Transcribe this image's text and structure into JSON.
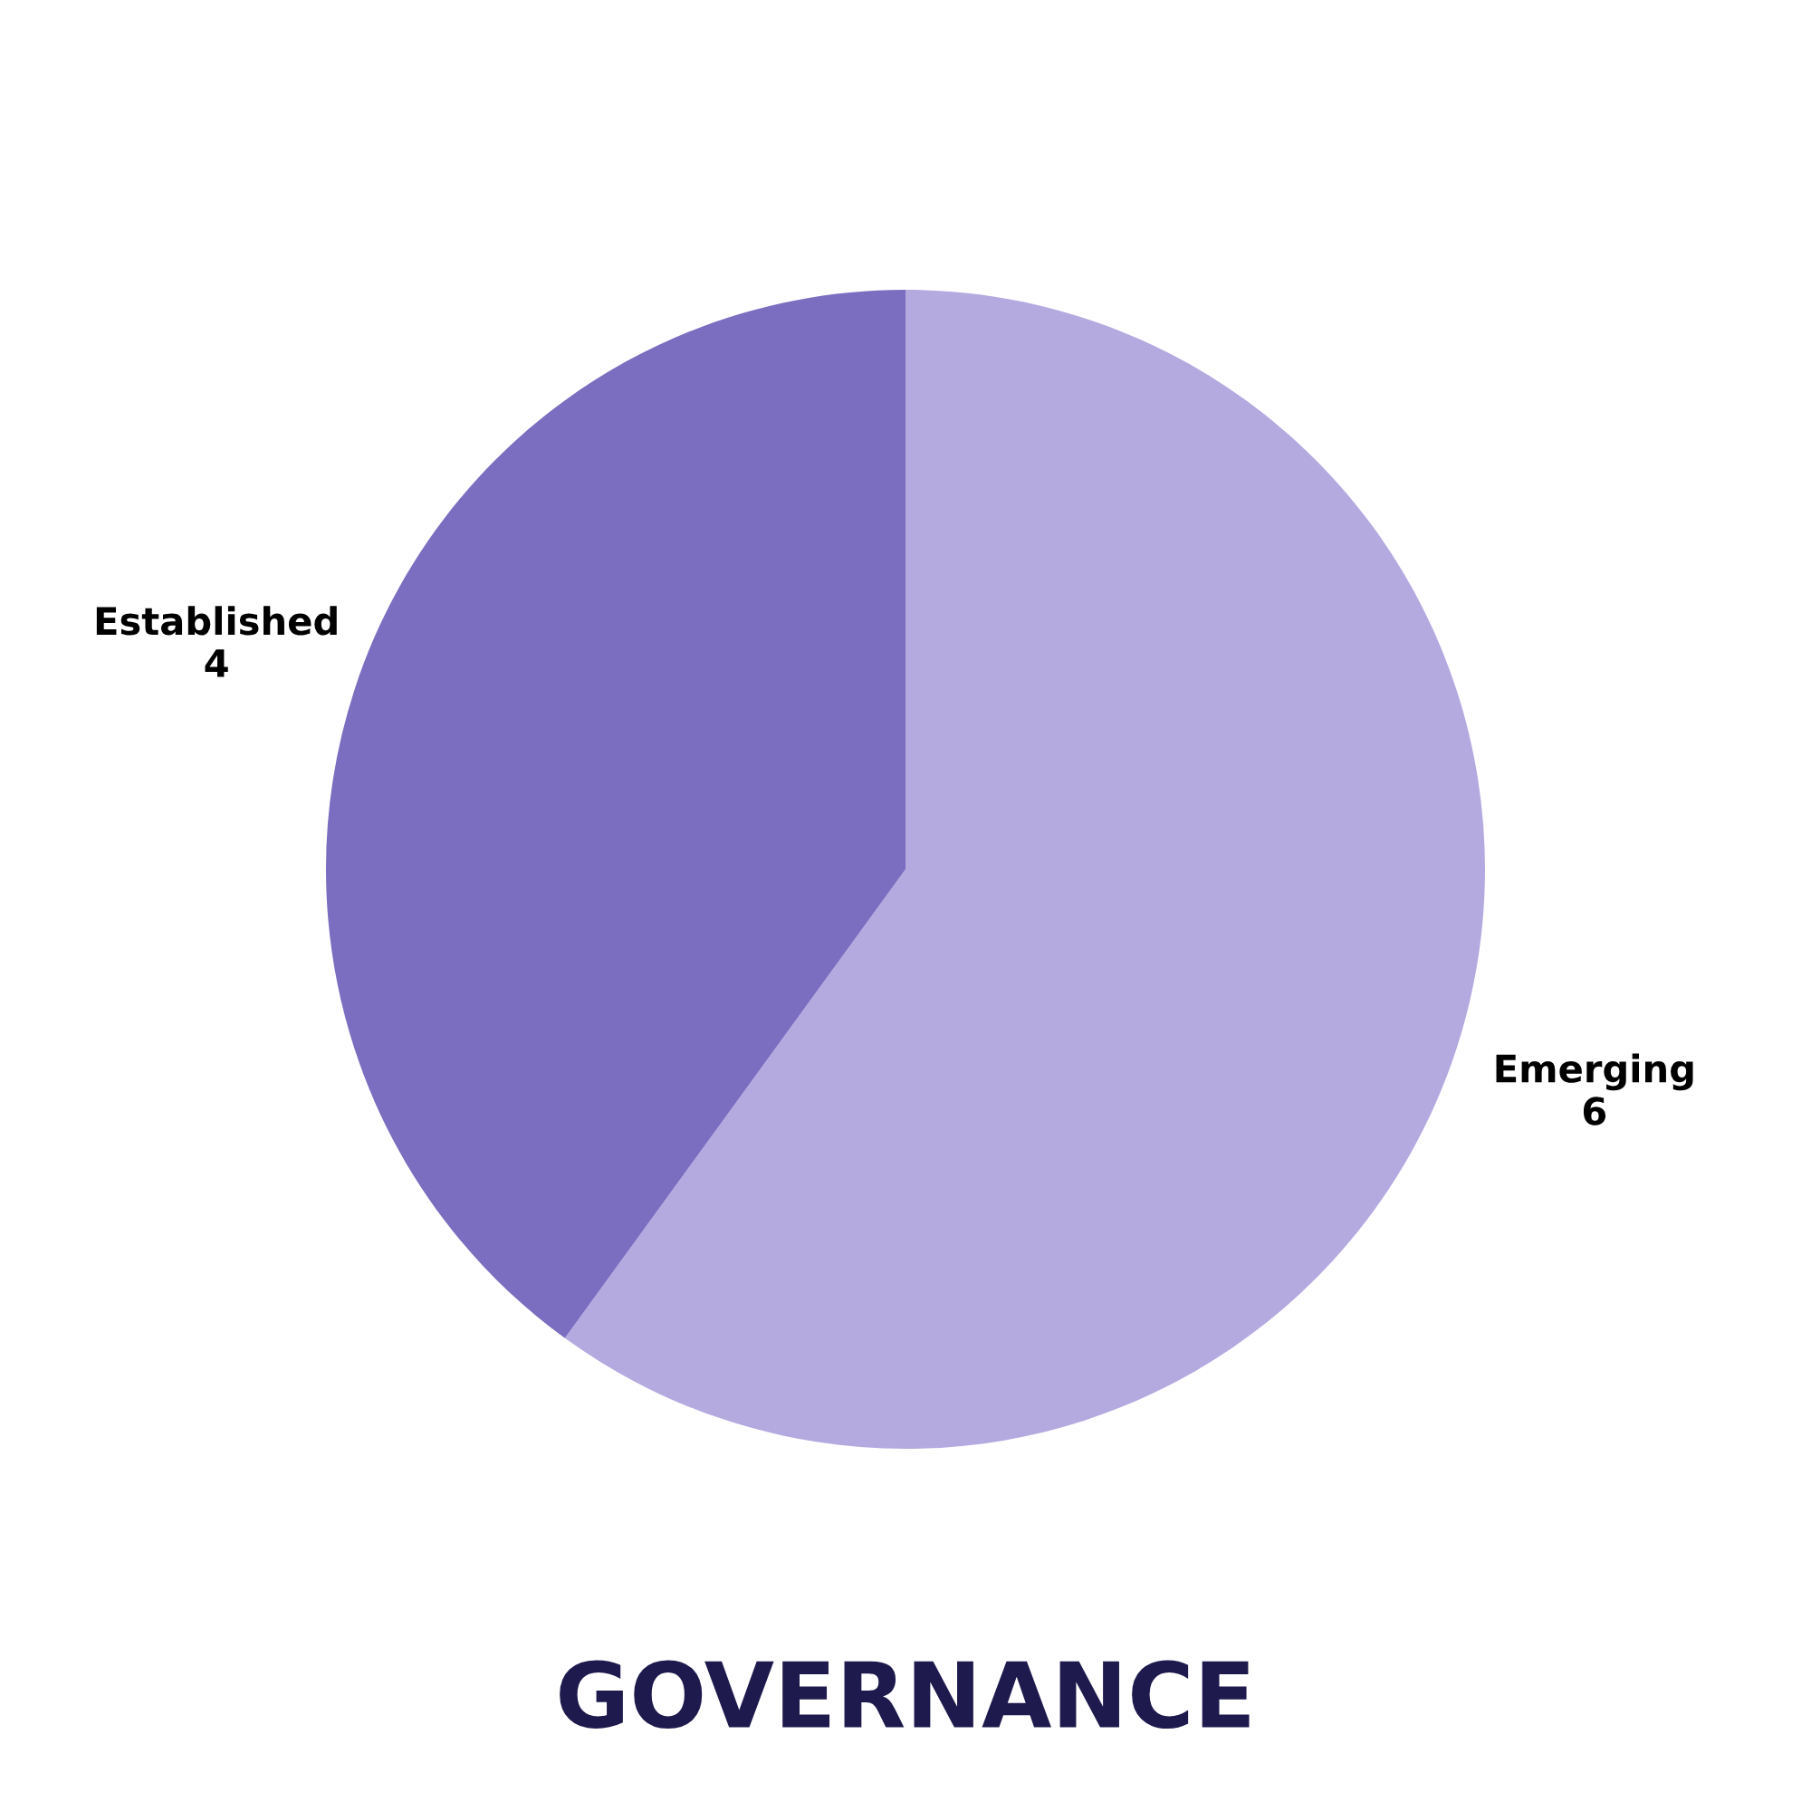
{
  "chart_data": {
    "type": "pie",
    "title": "GOVERNANCE",
    "categories": [
      "Emerging",
      "Established"
    ],
    "values": [
      6,
      4
    ],
    "colors": [
      "#b4aae0",
      "#7b6dc0"
    ],
    "data_labels": true,
    "legend": false
  }
}
